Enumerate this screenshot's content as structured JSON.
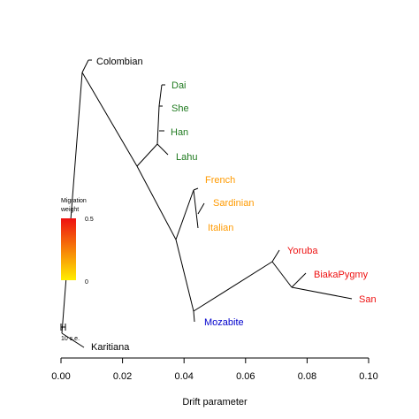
{
  "leaves": [
    {
      "name": "Colombian",
      "color": "#000000"
    },
    {
      "name": "Dai",
      "color": "#1f7a1f"
    },
    {
      "name": "She",
      "color": "#1f7a1f"
    },
    {
      "name": "Han",
      "color": "#1f7a1f"
    },
    {
      "name": "Lahu",
      "color": "#1f7a1f"
    },
    {
      "name": "French",
      "color": "#ff9a00"
    },
    {
      "name": "Sardinian",
      "color": "#ff9a00"
    },
    {
      "name": "Italian",
      "color": "#ff9a00"
    },
    {
      "name": "Yoruba",
      "color": "#ee1111"
    },
    {
      "name": "BiakaPygmy",
      "color": "#ee1111"
    },
    {
      "name": "San",
      "color": "#ee1111"
    },
    {
      "name": "Mozabite",
      "color": "#0000cc"
    },
    {
      "name": "Karitiana",
      "color": "#000000"
    }
  ],
  "legend": {
    "title_line1": "Migration",
    "title_line2": "weight",
    "max_label": "0.5",
    "min_label": "0",
    "color_top": "#ee1111",
    "color_bottom": "#ffee00"
  },
  "scale_bar": {
    "label": "10 s.e."
  },
  "x_axis": {
    "label": "Drift parameter",
    "ticks": [
      "0.00",
      "0.02",
      "0.04",
      "0.06",
      "0.08",
      "0.10"
    ]
  }
}
